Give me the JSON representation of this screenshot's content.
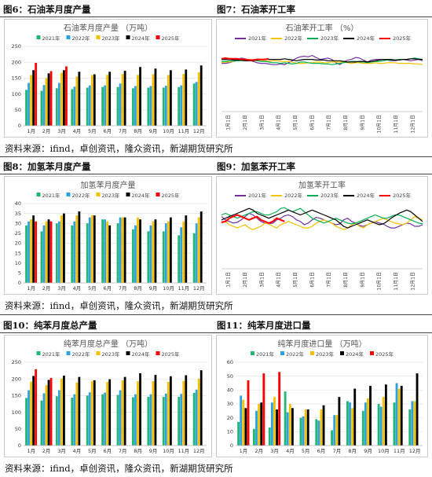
{
  "figures": [
    {
      "label": "图6：石油苯月度产量"
    },
    {
      "label": "图7：石油苯开工率"
    },
    {
      "label": "图8：加氢苯月度产量"
    },
    {
      "label": "图9：加氢苯开工率"
    },
    {
      "label": "图10：纯苯月度总产量"
    },
    {
      "label": "图11：纯苯月度进口量"
    }
  ],
  "sources": [
    "资料来源：ifind，卓创资讯，隆众资讯，新湖期货研究所",
    "资料来源：ifind，卓创资讯，隆众资讯，新湖期货研究所",
    "资料来源：ifind，卓创资讯，隆众资讯，新湖期货研究所"
  ],
  "colors": {
    "2021年": "#4472C4",
    "2022年": "#2196F3",
    "2023年": "#F5C000",
    "2024年": "#000000",
    "2025年": "#FF0000",
    "bar2021": "#22B573",
    "bar2022": "#2CA3E0"
  },
  "chart_data": [
    {
      "type": "bar",
      "title": "石油苯月度产量 （万吨）",
      "categories": [
        "1月",
        "2月",
        "3月",
        "4月",
        "5月",
        "6月",
        "7月",
        "8月",
        "9月",
        "10月",
        "11月",
        "12月"
      ],
      "ylim": [
        0,
        250
      ],
      "yticks": [
        0,
        50,
        100,
        150,
        200,
        250
      ],
      "legend": "top",
      "series": [
        {
          "name": "2021年",
          "values": [
            113,
            110,
            118,
            115,
            120,
            122,
            122,
            118,
            120,
            120,
            122,
            133
          ]
        },
        {
          "name": "2022年",
          "values": [
            135,
            128,
            135,
            123,
            127,
            127,
            133,
            125,
            125,
            126,
            127,
            138
          ]
        },
        {
          "name": "2023年",
          "values": [
            160,
            150,
            167,
            155,
            160,
            160,
            163,
            160,
            162,
            160,
            163,
            168
          ]
        },
        {
          "name": "2024年",
          "values": [
            175,
            165,
            175,
            170,
            162,
            170,
            173,
            185,
            180,
            175,
            177,
            190
          ]
        },
        {
          "name": "2025年",
          "values": [
            198,
            172,
            187,
            null,
            null,
            null,
            null,
            null,
            null,
            null,
            null,
            null
          ]
        }
      ]
    },
    {
      "type": "line",
      "title": "石油苯开工率 （%）",
      "ylim": [
        0,
        100
      ],
      "x_ticks": [
        "1月1日",
        "2月1日",
        "3月1日",
        "4月1日",
        "5月1日",
        "6月1日",
        "7月1日",
        "8月1日",
        "9月1日",
        "10月1日",
        "11月1日",
        "12月1日"
      ],
      "legend": "top",
      "series": [
        {
          "name": "2021年",
          "values": [
            74,
            74,
            75,
            77,
            79,
            82,
            81,
            79,
            77,
            75,
            74,
            74,
            73,
            72,
            72,
            73,
            72,
            75,
            78,
            82,
            84,
            85,
            84,
            86,
            83,
            80,
            81,
            82,
            80,
            75,
            72,
            76,
            79,
            80,
            83,
            82,
            79,
            76,
            79,
            80,
            80,
            80,
            79,
            78,
            78,
            79,
            80,
            79,
            78,
            79,
            80,
            78
          ]
        },
        {
          "name": "2022年",
          "values": [
            75,
            76,
            76,
            77,
            78,
            78,
            79,
            80,
            79,
            78,
            78,
            78,
            77,
            78,
            78,
            77,
            77,
            77,
            76,
            74,
            74,
            74,
            75,
            75,
            76,
            76,
            75,
            75,
            76,
            76,
            76,
            76,
            75,
            74,
            75,
            75,
            74,
            74,
            74,
            75,
            74,
            74,
            75,
            75,
            75,
            74,
            74,
            74,
            74,
            73,
            73,
            72
          ]
        },
        {
          "name": "2023年",
          "values": [
            77,
            77,
            78,
            77,
            78,
            78,
            78,
            78,
            79,
            78,
            77,
            77,
            76,
            75,
            75,
            74,
            75,
            74,
            73,
            74,
            76,
            76,
            75,
            74,
            74,
            74,
            73,
            73,
            72,
            73,
            74,
            75,
            76,
            77,
            77,
            76,
            76,
            75,
            76,
            77,
            77,
            78,
            79,
            79,
            79,
            80,
            80,
            80,
            81,
            82,
            81,
            80
          ]
        },
        {
          "name": "2024年",
          "values": [
            80,
            80,
            80,
            79,
            79,
            79,
            78,
            78,
            78,
            79,
            80,
            80,
            80,
            80,
            80,
            80,
            81,
            80,
            79,
            78,
            79,
            80,
            80,
            80,
            79,
            79,
            79,
            78,
            78,
            78,
            78,
            77,
            76,
            76,
            76,
            77,
            77,
            76,
            77,
            78,
            79,
            80,
            80,
            80,
            79,
            79,
            80,
            80,
            81,
            81,
            80,
            80
          ]
        },
        {
          "name": "2025年",
          "values": [
            81,
            82,
            81,
            81,
            81,
            80,
            80,
            79,
            79,
            80,
            80,
            80,
            81,
            null,
            null,
            null,
            null,
            null,
            null,
            null,
            null,
            null,
            null,
            null,
            null,
            null,
            null,
            null,
            null,
            null,
            null,
            null,
            null,
            null,
            null,
            null,
            null,
            null,
            null,
            null,
            null,
            null,
            null,
            null,
            null,
            null,
            null,
            null,
            null,
            null,
            null,
            null
          ]
        }
      ]
    },
    {
      "type": "bar",
      "title": "加氢苯月度产量",
      "categories": [
        "1月",
        "2月",
        "3月",
        "4月",
        "5月",
        "6月",
        "7月",
        "8月",
        "9月",
        "10月",
        "11月",
        "12月"
      ],
      "ylim": [
        0,
        40
      ],
      "yticks": [
        0,
        5,
        10,
        15,
        20,
        25,
        30,
        35,
        40
      ],
      "legend": "top",
      "series": [
        {
          "name": "2021年",
          "values": [
            29,
            26,
            30,
            29,
            30,
            32,
            30,
            27,
            26,
            26,
            24,
            25
          ]
        },
        {
          "name": "2022年",
          "values": [
            31,
            29,
            31,
            31,
            33,
            32,
            33,
            29,
            29,
            30,
            28,
            30
          ]
        },
        {
          "name": "2023年",
          "values": [
            32,
            31,
            34,
            34,
            34,
            31,
            33,
            33,
            31,
            31,
            31,
            33
          ]
        },
        {
          "name": "2024年",
          "values": [
            34,
            32,
            35,
            36,
            34,
            29,
            33,
            32,
            32,
            33,
            34,
            36
          ]
        },
        {
          "name": "2025年",
          "values": [
            31,
            31,
            null,
            null,
            null,
            null,
            null,
            null,
            null,
            null,
            null,
            null
          ]
        }
      ]
    },
    {
      "type": "line",
      "title": "加氢苯开工率",
      "ylim": [
        0,
        80
      ],
      "x_ticks": [
        "1月1日",
        "2月1日",
        "3月1日",
        "4月1日",
        "5月1日",
        "6月1日",
        "7月1日",
        "8月1日",
        "9月1日",
        "10月1日",
        "11月1日",
        "12月1日"
      ],
      "legend": "top",
      "series": [
        {
          "name": "2021年",
          "values": [
            64,
            60,
            58,
            56,
            57,
            60,
            64,
            68,
            66,
            62,
            58,
            56,
            55,
            56,
            60,
            62,
            65,
            66,
            64,
            60,
            58,
            54,
            56,
            60,
            63,
            62,
            60,
            58,
            56,
            54,
            55,
            60,
            62,
            58,
            56,
            53,
            52,
            54,
            56,
            58,
            56,
            55,
            52,
            50,
            50,
            52,
            54,
            56,
            55,
            52,
            52,
            54
          ]
        },
        {
          "name": "2022年",
          "values": [
            56,
            58,
            54,
            52,
            50,
            52,
            54,
            50,
            48,
            50,
            52,
            56,
            55,
            52,
            50,
            54,
            56,
            58,
            56,
            54,
            52,
            50,
            50,
            52,
            56,
            58,
            60,
            58,
            56,
            52,
            50,
            48,
            50,
            54,
            56,
            52,
            50,
            54,
            56,
            58,
            60,
            62,
            60,
            58,
            56,
            55,
            54,
            56,
            60,
            64,
            62,
            60
          ]
        },
        {
          "name": "2023年",
          "values": [
            66,
            68,
            66,
            64,
            62,
            64,
            66,
            68,
            70,
            70,
            68,
            66,
            66,
            68,
            70,
            74,
            75,
            72,
            70,
            72,
            74,
            70,
            66,
            62,
            60,
            58,
            56,
            58,
            60,
            62,
            60,
            58,
            56,
            55,
            56,
            58,
            60,
            62,
            64,
            66,
            64,
            62,
            62,
            64,
            66,
            66,
            64,
            62,
            60,
            58,
            56,
            55
          ]
        },
        {
          "name": "2024年",
          "values": [
            60,
            62,
            64,
            66,
            68,
            70,
            72,
            74,
            72,
            68,
            66,
            64,
            62,
            64,
            66,
            68,
            70,
            72,
            70,
            68,
            66,
            68,
            70,
            72,
            70,
            68,
            66,
            64,
            62,
            60,
            56,
            52,
            50,
            52,
            54,
            56,
            58,
            60,
            58,
            56,
            54,
            55,
            58,
            62,
            65,
            68,
            70,
            72,
            70,
            66,
            62,
            58
          ]
        },
        {
          "name": "2025年",
          "values": [
            57,
            58,
            62,
            64,
            66,
            64,
            62,
            60,
            62,
            64,
            60,
            58,
            56,
            58,
            62,
            60,
            58,
            null,
            null,
            null,
            null,
            null,
            null,
            null,
            null,
            null,
            null,
            null,
            null,
            null,
            null,
            null,
            null,
            null,
            null,
            null,
            null,
            null,
            null,
            null,
            null,
            null,
            null,
            null,
            null,
            null,
            null,
            null,
            null,
            null,
            null,
            null
          ]
        }
      ]
    },
    {
      "type": "bar",
      "title": "纯苯月度总产量 （万吨）",
      "categories": [
        "1月",
        "2月",
        "3月",
        "4月",
        "5月",
        "6月",
        "7月",
        "8月",
        "9月",
        "10月",
        "11月",
        "12月"
      ],
      "ylim": [
        0,
        250
      ],
      "yticks": [
        0,
        50,
        100,
        150,
        200,
        250
      ],
      "legend": "top",
      "series": [
        {
          "name": "2021年",
          "values": [
            143,
            135,
            148,
            144,
            150,
            154,
            152,
            145,
            146,
            146,
            146,
            158
          ]
        },
        {
          "name": "2022年",
          "values": [
            166,
            157,
            166,
            154,
            160,
            159,
            166,
            154,
            154,
            156,
            155,
            168
          ]
        },
        {
          "name": "2023年",
          "values": [
            192,
            181,
            201,
            189,
            194,
            191,
            196,
            193,
            193,
            191,
            194,
            201
          ]
        },
        {
          "name": "2024年",
          "values": [
            209,
            197,
            210,
            206,
            196,
            199,
            206,
            217,
            212,
            208,
            211,
            226
          ]
        },
        {
          "name": "2025年",
          "values": [
            229,
            203,
            null,
            null,
            null,
            null,
            null,
            null,
            null,
            null,
            null,
            null
          ]
        }
      ]
    },
    {
      "type": "bar",
      "title": "纯苯月度进口量 （万吨）",
      "categories": [
        "1月",
        "2月",
        "3月",
        "4月",
        "5月",
        "6月",
        "7月",
        "8月",
        "9月",
        "10月",
        "11月",
        "12月"
      ],
      "ylim": [
        0,
        60
      ],
      "yticks": [
        0,
        10,
        20,
        30,
        40,
        50,
        60
      ],
      "legend": "top",
      "series": [
        {
          "name": "2021年",
          "values": [
            17,
            12,
            13,
            39,
            20,
            19,
            11,
            32,
            25,
            30,
            31,
            26
          ]
        },
        {
          "name": "2022年",
          "values": [
            36,
            25,
            31,
            24,
            21,
            18,
            22,
            31,
            31,
            28,
            45,
            32
          ]
        },
        {
          "name": "2023年",
          "values": [
            33,
            30,
            35,
            30,
            26,
            26,
            22,
            27,
            34,
            35,
            41,
            32
          ]
        },
        {
          "name": "2024年",
          "values": [
            27,
            31,
            26,
            27,
            26,
            29,
            35,
            41,
            43,
            44,
            43,
            52
          ]
        },
        {
          "name": "2025年",
          "values": [
            47,
            52,
            53,
            null,
            null,
            null,
            null,
            null,
            null,
            null,
            null,
            null
          ]
        }
      ]
    }
  ]
}
